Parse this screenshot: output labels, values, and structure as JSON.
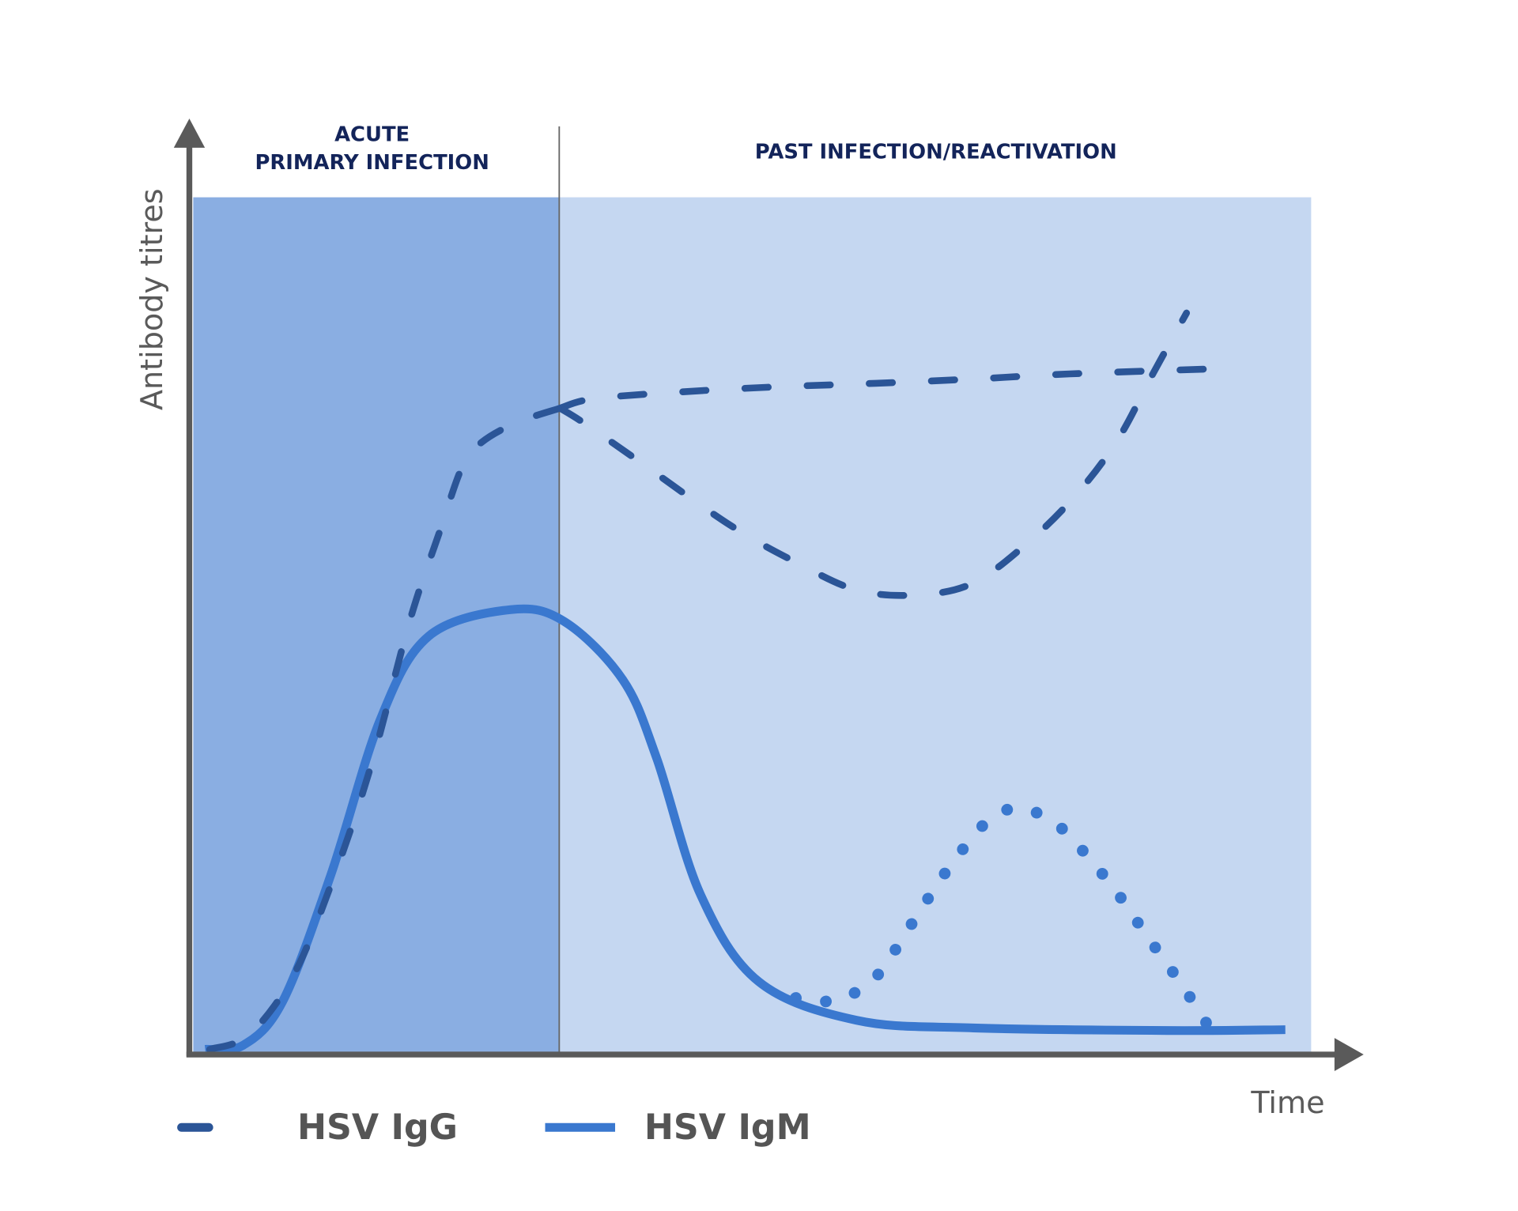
{
  "chart_data": {
    "type": "line",
    "title": "",
    "xlabel": "Time",
    "ylabel": "Antibody titres",
    "xlim": [
      0,
      100
    ],
    "ylim": [
      0,
      100
    ],
    "grid": false,
    "legend_placement": "bottom",
    "regions": [
      {
        "label_lines": [
          "ACUTE",
          "PRIMARY INFECTION"
        ],
        "x_range": [
          0,
          33.1
        ],
        "color": "#8aaee2"
      },
      {
        "label_lines": [
          "PAST INFECTION/REACTIVATION"
        ],
        "x_range": [
          33.1,
          100
        ],
        "color": "#c5d7f1"
      }
    ],
    "series": [
      {
        "name": "HSV IgG",
        "style": "dashed",
        "color": "#2b5597",
        "x": [
          1.9,
          5.4,
          9.3,
          12.7,
          16.2,
          19.7,
          22.3,
          24.4,
          26.1,
          29.2,
          33.1
        ],
        "y": [
          0.6,
          2.3,
          9.1,
          19.8,
          33.4,
          50.5,
          60.7,
          68.6,
          71.4,
          73.7,
          75.4
        ]
      },
      {
        "name": "HSV IgM",
        "style": "solid",
        "color": "#3a78cf",
        "x": [
          1.5,
          4.9,
          8.4,
          12.7,
          17.1,
          21.4,
          28.7,
          33.5,
          38.7,
          41.7,
          45.6,
          50.8,
          59.5,
          69.9,
          87.2,
          97.7
        ],
        "y": [
          0.6,
          1.1,
          6.2,
          21.0,
          39.1,
          48.8,
          51.9,
          50.5,
          43.7,
          34.6,
          18.7,
          8.5,
          4.0,
          3.1,
          2.8,
          2.9
        ]
      }
    ],
    "extra_series": [
      {
        "style": "dashed",
        "color": "#2b5597",
        "x": [
          33.1,
          36.1,
          43.9,
          52.6,
          61.2,
          69.9,
          78.5,
          91.5
        ],
        "y": [
          75.4,
          76.5,
          77.3,
          77.9,
          78.3,
          78.8,
          79.4,
          80.0
        ]
      },
      {
        "style": "dashed",
        "color": "#2b5597",
        "x": [
          33.1,
          35.2,
          39.6,
          48.2,
          54.3,
          59.5,
          64.7,
          69.9,
          75.1,
          79.4,
          82.9,
          85.9,
          88.9
        ],
        "y": [
          75.4,
          73.7,
          69.7,
          61.8,
          57.3,
          54.2,
          53.6,
          55.0,
          60.1,
          65.8,
          72.0,
          79.4,
          86.5
        ]
      },
      {
        "style": "dotted",
        "color": "#3a78cf",
        "x": [
          54.1,
          56.9,
          59.5,
          61.6,
          64.7,
          67.8,
          71.3,
          73.9,
          76.5,
          78.6,
          82.3,
          85.5,
          88.7,
          91.7
        ],
        "y": [
          6.6,
          6.2,
          7.3,
          9.6,
          15.8,
          21.9,
          27.4,
          28.7,
          27.6,
          25.3,
          19.6,
          13.6,
          7.7,
          1.5
        ]
      }
    ]
  }
}
